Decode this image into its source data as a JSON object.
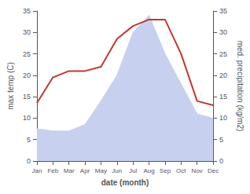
{
  "chart_data": {
    "type": "line",
    "categories": [
      "Jan",
      "Feb",
      "Mar",
      "Apr",
      "May",
      "Jun",
      "Jul",
      "Aug",
      "Sep",
      "Oct",
      "Nov",
      "Dec"
    ],
    "series": [
      {
        "type": "area",
        "axis": "y2",
        "color": "#c8d0f0",
        "values": [
          7.5,
          7.0,
          7.0,
          8.5,
          14.0,
          20.0,
          30.0,
          34.0,
          25.0,
          18.0,
          11.0,
          10.0
        ]
      },
      {
        "type": "line",
        "axis": "y",
        "color": "#c0392b",
        "values": [
          13.5,
          19.5,
          21.0,
          21.0,
          22.0,
          28.5,
          31.5,
          33.0,
          33.0,
          25.0,
          14.0,
          13.0
        ]
      }
    ],
    "xlabel": "date (month)",
    "ylabel": "max temp (C)",
    "y2label": "med. precipitation (kg/m2)",
    "ylim": [
      0,
      35
    ],
    "yticks": [
      0,
      5,
      10,
      15,
      20,
      25,
      30,
      35
    ],
    "y2lim": [
      0,
      35
    ],
    "y2ticks": [
      0,
      5,
      10,
      15,
      20,
      25,
      30,
      35
    ],
    "grid": false
  }
}
